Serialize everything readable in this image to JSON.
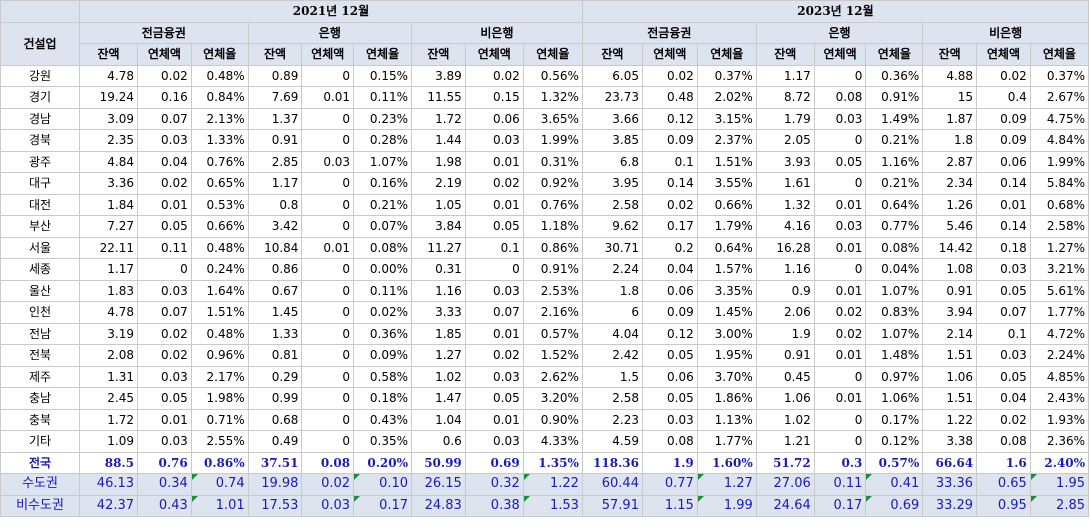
{
  "header": {
    "corner": "건설업",
    "years": [
      "2021년 12월",
      "2023년 12월"
    ],
    "groups": [
      "전금융권",
      "은행",
      "비은행",
      "전금융권",
      "은행",
      "비은행"
    ],
    "metrics": [
      "잔액",
      "연체액",
      "연체율",
      "잔액",
      "연체액",
      "연체율",
      "잔액",
      "연체액",
      "연체율",
      "잔액",
      "연체액",
      "연체율",
      "잔액",
      "연체액",
      "연체율",
      "잔액",
      "연체액",
      "연체율"
    ]
  },
  "rows": [
    {
      "region": "강원",
      "values": [
        "4.78",
        "0.02",
        "0.48%",
        "0.89",
        "0",
        "0.15%",
        "3.89",
        "0.02",
        "0.56%",
        "6.05",
        "0.02",
        "0.37%",
        "1.17",
        "0",
        "0.36%",
        "4.88",
        "0.02",
        "0.37%"
      ]
    },
    {
      "region": "경기",
      "values": [
        "19.24",
        "0.16",
        "0.84%",
        "7.69",
        "0.01",
        "0.11%",
        "11.55",
        "0.15",
        "1.32%",
        "23.73",
        "0.48",
        "2.02%",
        "8.72",
        "0.08",
        "0.91%",
        "15",
        "0.4",
        "2.67%"
      ]
    },
    {
      "region": "경남",
      "values": [
        "3.09",
        "0.07",
        "2.13%",
        "1.37",
        "0",
        "0.23%",
        "1.72",
        "0.06",
        "3.65%",
        "3.66",
        "0.12",
        "3.15%",
        "1.79",
        "0.03",
        "1.49%",
        "1.87",
        "0.09",
        "4.75%"
      ]
    },
    {
      "region": "경북",
      "values": [
        "2.35",
        "0.03",
        "1.33%",
        "0.91",
        "0",
        "0.28%",
        "1.44",
        "0.03",
        "1.99%",
        "3.85",
        "0.09",
        "2.37%",
        "2.05",
        "0",
        "0.21%",
        "1.8",
        "0.09",
        "4.84%"
      ]
    },
    {
      "region": "광주",
      "values": [
        "4.84",
        "0.04",
        "0.76%",
        "2.85",
        "0.03",
        "1.07%",
        "1.98",
        "0.01",
        "0.31%",
        "6.8",
        "0.1",
        "1.51%",
        "3.93",
        "0.05",
        "1.16%",
        "2.87",
        "0.06",
        "1.99%"
      ]
    },
    {
      "region": "대구",
      "values": [
        "3.36",
        "0.02",
        "0.65%",
        "1.17",
        "0",
        "0.16%",
        "2.19",
        "0.02",
        "0.92%",
        "3.95",
        "0.14",
        "3.55%",
        "1.61",
        "0",
        "0.21%",
        "2.34",
        "0.14",
        "5.84%"
      ]
    },
    {
      "region": "대전",
      "values": [
        "1.84",
        "0.01",
        "0.53%",
        "0.8",
        "0",
        "0.21%",
        "1.05",
        "0.01",
        "0.76%",
        "2.58",
        "0.02",
        "0.66%",
        "1.32",
        "0.01",
        "0.64%",
        "1.26",
        "0.01",
        "0.68%"
      ]
    },
    {
      "region": "부산",
      "values": [
        "7.27",
        "0.05",
        "0.66%",
        "3.42",
        "0",
        "0.07%",
        "3.84",
        "0.05",
        "1.18%",
        "9.62",
        "0.17",
        "1.79%",
        "4.16",
        "0.03",
        "0.77%",
        "5.46",
        "0.14",
        "2.58%"
      ]
    },
    {
      "region": "서울",
      "values": [
        "22.11",
        "0.11",
        "0.48%",
        "10.84",
        "0.01",
        "0.08%",
        "11.27",
        "0.1",
        "0.86%",
        "30.71",
        "0.2",
        "0.64%",
        "16.28",
        "0.01",
        "0.08%",
        "14.42",
        "0.18",
        "1.27%"
      ]
    },
    {
      "region": "세종",
      "values": [
        "1.17",
        "0",
        "0.24%",
        "0.86",
        "0",
        "0.00%",
        "0.31",
        "0",
        "0.91%",
        "2.24",
        "0.04",
        "1.57%",
        "1.16",
        "0",
        "0.04%",
        "1.08",
        "0.03",
        "3.21%"
      ]
    },
    {
      "region": "울산",
      "values": [
        "1.83",
        "0.03",
        "1.64%",
        "0.67",
        "0",
        "0.11%",
        "1.16",
        "0.03",
        "2.53%",
        "1.8",
        "0.06",
        "3.35%",
        "0.9",
        "0.01",
        "1.07%",
        "0.91",
        "0.05",
        "5.61%"
      ]
    },
    {
      "region": "인천",
      "values": [
        "4.78",
        "0.07",
        "1.51%",
        "1.45",
        "0",
        "0.02%",
        "3.33",
        "0.07",
        "2.16%",
        "6",
        "0.09",
        "1.45%",
        "2.06",
        "0.02",
        "0.83%",
        "3.94",
        "0.07",
        "1.77%"
      ]
    },
    {
      "region": "전남",
      "values": [
        "3.19",
        "0.02",
        "0.48%",
        "1.33",
        "0",
        "0.36%",
        "1.85",
        "0.01",
        "0.57%",
        "4.04",
        "0.12",
        "3.00%",
        "1.9",
        "0.02",
        "1.07%",
        "2.14",
        "0.1",
        "4.72%"
      ]
    },
    {
      "region": "전북",
      "values": [
        "2.08",
        "0.02",
        "0.96%",
        "0.81",
        "0",
        "0.09%",
        "1.27",
        "0.02",
        "1.52%",
        "2.42",
        "0.05",
        "1.95%",
        "0.91",
        "0.01",
        "1.48%",
        "1.51",
        "0.03",
        "2.24%"
      ]
    },
    {
      "region": "제주",
      "values": [
        "1.31",
        "0.03",
        "2.17%",
        "0.29",
        "0",
        "0.58%",
        "1.02",
        "0.03",
        "2.62%",
        "1.5",
        "0.06",
        "3.70%",
        "0.45",
        "0",
        "0.97%",
        "1.06",
        "0.05",
        "4.85%"
      ]
    },
    {
      "region": "충남",
      "values": [
        "2.45",
        "0.05",
        "1.98%",
        "0.99",
        "0",
        "0.18%",
        "1.47",
        "0.05",
        "3.20%",
        "2.58",
        "0.05",
        "1.86%",
        "1.06",
        "0.01",
        "1.06%",
        "1.51",
        "0.04",
        "2.43%"
      ]
    },
    {
      "region": "충북",
      "values": [
        "1.72",
        "0.01",
        "0.71%",
        "0.68",
        "0",
        "0.43%",
        "1.04",
        "0.01",
        "0.90%",
        "2.23",
        "0.03",
        "1.13%",
        "1.02",
        "0",
        "0.17%",
        "1.22",
        "0.02",
        "1.93%"
      ]
    },
    {
      "region": "기타",
      "values": [
        "1.09",
        "0.03",
        "2.55%",
        "0.49",
        "0",
        "0.35%",
        "0.6",
        "0.03",
        "4.33%",
        "4.59",
        "0.08",
        "1.77%",
        "1.21",
        "0",
        "0.12%",
        "3.38",
        "0.08",
        "2.36%"
      ]
    }
  ],
  "total": {
    "region": "전국",
    "values": [
      "88.5",
      "0.76",
      "0.86%",
      "37.51",
      "0.08",
      "0.20%",
      "50.99",
      "0.69",
      "1.35%",
      "118.36",
      "1.9",
      "1.60%",
      "51.72",
      "0.3",
      "0.57%",
      "66.64",
      "1.6",
      "2.40%"
    ]
  },
  "summary": [
    {
      "region": "수도권",
      "values": [
        "46.13",
        "0.34",
        "0.74",
        "19.98",
        "0.02",
        "0.10",
        "26.15",
        "0.32",
        "1.22",
        "60.44",
        "0.77",
        "1.27",
        "27.06",
        "0.11",
        "0.41",
        "33.36",
        "0.65",
        "1.95"
      ]
    },
    {
      "region": "비수도권",
      "values": [
        "42.37",
        "0.43",
        "1.01",
        "17.53",
        "0.03",
        "0.17",
        "24.83",
        "0.38",
        "1.53",
        "57.91",
        "1.15",
        "1.99",
        "24.64",
        "0.17",
        "0.69",
        "33.29",
        "0.95",
        "2.85"
      ]
    }
  ],
  "colors": {
    "header_bg": "#dde4f0",
    "total_text": "#1a1ab8",
    "note_marker": "#1a8f3a"
  }
}
